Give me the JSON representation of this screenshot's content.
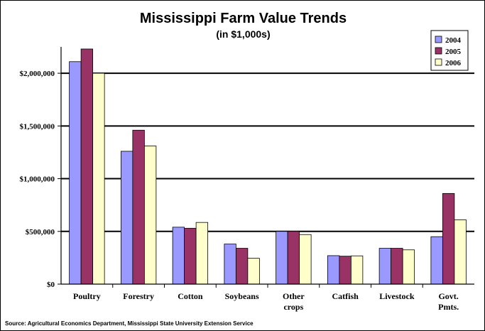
{
  "chart_data": {
    "type": "bar",
    "title": "Mississippi Farm Value Trends",
    "subtitle": "(in $1,000s)",
    "categories": [
      "Poultry",
      "Forestry",
      "Cotton",
      "Soybeans",
      "Other crops",
      "Catfish",
      "Livestock",
      "Govt. Pmts."
    ],
    "category_lines": [
      [
        "Poultry"
      ],
      [
        "Forestry"
      ],
      [
        "Cotton"
      ],
      [
        "Soybeans"
      ],
      [
        "Other",
        "crops"
      ],
      [
        "Catfish"
      ],
      [
        "Livestock"
      ],
      [
        "Govt.",
        "Pmts."
      ]
    ],
    "series": [
      {
        "name": "2004",
        "color": "#9999ff",
        "values": [
          2110000,
          1260000,
          540000,
          380000,
          500000,
          270000,
          340000,
          450000
        ]
      },
      {
        "name": "2005",
        "color": "#993366",
        "values": [
          2230000,
          1460000,
          530000,
          340000,
          500000,
          265000,
          340000,
          860000
        ]
      },
      {
        "name": "2006",
        "color": "#ffffcc",
        "values": [
          2000000,
          1310000,
          585000,
          245000,
          470000,
          268000,
          325000,
          610000
        ]
      }
    ],
    "ylim": [
      0,
      2250000
    ],
    "yticks": [
      0,
      500000,
      1000000,
      1500000,
      2000000
    ],
    "ytick_labels": [
      "$0",
      "$500,000",
      "$1,000,000",
      "$1,500,000",
      "$2,000,000"
    ],
    "grid": true,
    "legend": "top-right"
  },
  "source_note": "Source: Agricultural Economics Department, Mississippi State University Extension Service"
}
